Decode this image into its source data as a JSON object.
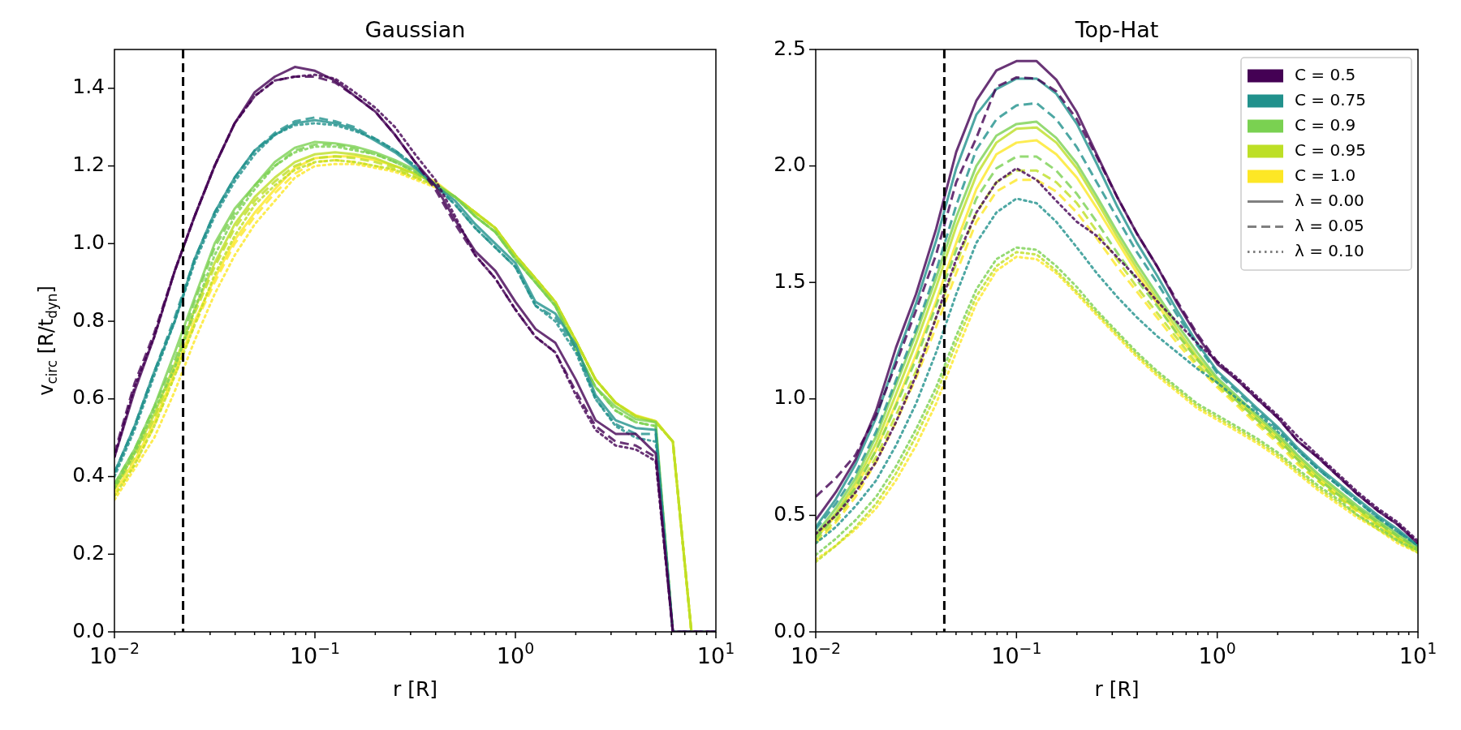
{
  "chart_data": [
    {
      "type": "line",
      "title": "Gaussian",
      "xlabel": "r [R]",
      "ylabel": "v$_{circ}$ [R/t$_{dyn}$]",
      "log": "x",
      "grid": false,
      "legend": false,
      "marker": "none",
      "xlim": [
        0.01,
        10
      ],
      "ylim": [
        0,
        1.5
      ],
      "xticks": [
        {
          "value": 0.01,
          "label": "10$^{−2}$"
        },
        {
          "value": 0.02,
          "label": null
        },
        {
          "value": 0.03,
          "label": null
        },
        {
          "value": 0.04,
          "label": null
        },
        {
          "value": 0.05,
          "label": null
        },
        {
          "value": 0.06,
          "label": null
        },
        {
          "value": 0.07,
          "label": null
        },
        {
          "value": 0.08,
          "label": null
        },
        {
          "value": 0.09,
          "label": null
        },
        {
          "value": 0.1,
          "label": "10$^{−1}$"
        },
        {
          "value": 0.2,
          "label": null
        },
        {
          "value": 0.3,
          "label": null
        },
        {
          "value": 0.4,
          "label": null
        },
        {
          "value": 0.5,
          "label": null
        },
        {
          "value": 0.6,
          "label": null
        },
        {
          "value": 0.7,
          "label": null
        },
        {
          "value": 0.8,
          "label": null
        },
        {
          "value": 0.9,
          "label": null
        },
        {
          "value": 1,
          "label": "10$^{0}$"
        },
        {
          "value": 2,
          "label": null
        },
        {
          "value": 3,
          "label": null
        },
        {
          "value": 4,
          "label": null
        },
        {
          "value": 5,
          "label": null
        },
        {
          "value": 6,
          "label": null
        },
        {
          "value": 7,
          "label": null
        },
        {
          "value": 8,
          "label": null
        },
        {
          "value": 9,
          "label": null
        },
        {
          "value": 10,
          "label": "10$^{1}$"
        }
      ],
      "yticks": [
        {
          "value": 0,
          "label": "0.0"
        },
        {
          "value": 0.2,
          "label": "0.2"
        },
        {
          "value": 0.4,
          "label": "0.4"
        },
        {
          "value": 0.6,
          "label": "0.6"
        },
        {
          "value": 0.8,
          "label": "0.8"
        },
        {
          "value": 1,
          "label": "1.0"
        },
        {
          "value": 1.2,
          "label": "1.2"
        },
        {
          "value": 1.4,
          "label": "1.4"
        }
      ],
      "ref_lines": [
        {
          "axis": "x",
          "value": 0.022,
          "color": "#000000",
          "line_style": "dashed"
        }
      ],
      "x": [
        0.01,
        0.0126,
        0.0158,
        0.02,
        0.0251,
        0.0316,
        0.0398,
        0.0501,
        0.0631,
        0.0794,
        0.1,
        0.126,
        0.158,
        0.2,
        0.251,
        0.316,
        0.398,
        0.501,
        0.631,
        0.794,
        1,
        1.26,
        1.58,
        2,
        2.51,
        3.16,
        3.98,
        5.01,
        6.1,
        7.55,
        10
      ],
      "series": [
        {
          "color": "#440154",
          "line_style": "solid",
          "values": [
            0.45,
            0.62,
            0.76,
            0.93,
            1.07,
            1.2,
            1.31,
            1.39,
            1.43,
            1.455,
            1.445,
            1.42,
            1.38,
            1.34,
            1.28,
            1.21,
            1.15,
            1.06,
            0.98,
            0.93,
            0.85,
            0.78,
            0.745,
            0.65,
            0.545,
            0.51,
            0.51,
            0.46,
            0,
            0,
            0
          ]
        },
        {
          "color": "#440154",
          "line_style": "dashed",
          "values": [
            0.46,
            0.64,
            0.77,
            0.93,
            1.07,
            1.2,
            1.31,
            1.38,
            1.42,
            1.43,
            1.43,
            1.415,
            1.38,
            1.34,
            1.28,
            1.21,
            1.14,
            1.05,
            0.97,
            0.91,
            0.83,
            0.76,
            0.72,
            0.62,
            0.53,
            0.49,
            0.48,
            0.45,
            0,
            0,
            0
          ]
        },
        {
          "color": "#440154",
          "line_style": "dotted",
          "values": [
            0.45,
            0.63,
            0.76,
            0.93,
            1.07,
            1.2,
            1.31,
            1.38,
            1.42,
            1.43,
            1.435,
            1.425,
            1.39,
            1.35,
            1.3,
            1.23,
            1.165,
            1.07,
            0.97,
            0.91,
            0.83,
            0.76,
            0.72,
            0.61,
            0.52,
            0.48,
            0.47,
            0.44,
            0,
            0,
            0
          ]
        },
        {
          "color": "#21918c",
          "line_style": "solid",
          "values": [
            0.41,
            0.53,
            0.67,
            0.8,
            0.96,
            1.08,
            1.17,
            1.24,
            1.28,
            1.31,
            1.318,
            1.31,
            1.295,
            1.265,
            1.235,
            1.195,
            1.15,
            1.11,
            1.05,
            1.0,
            0.95,
            0.85,
            0.82,
            0.74,
            0.61,
            0.545,
            0.525,
            0.52,
            0,
            0,
            0
          ]
        },
        {
          "color": "#21918c",
          "line_style": "dashed",
          "values": [
            0.41,
            0.53,
            0.67,
            0.81,
            0.96,
            1.08,
            1.17,
            1.24,
            1.285,
            1.315,
            1.325,
            1.315,
            1.3,
            1.27,
            1.24,
            1.2,
            1.15,
            1.1,
            1.04,
            0.99,
            0.94,
            0.84,
            0.81,
            0.73,
            0.6,
            0.535,
            0.51,
            0.51,
            0,
            0,
            0
          ]
        },
        {
          "color": "#21918c",
          "line_style": "dotted",
          "values": [
            0.4,
            0.52,
            0.66,
            0.8,
            0.95,
            1.07,
            1.16,
            1.23,
            1.28,
            1.305,
            1.31,
            1.305,
            1.29,
            1.27,
            1.24,
            1.2,
            1.15,
            1.1,
            1.04,
            0.99,
            0.94,
            0.84,
            0.8,
            0.72,
            0.6,
            0.53,
            0.5,
            0.49,
            0,
            0,
            0
          ]
        },
        {
          "color": "#7ad151",
          "line_style": "solid",
          "values": [
            0.38,
            0.47,
            0.58,
            0.72,
            0.86,
            1.0,
            1.09,
            1.15,
            1.21,
            1.247,
            1.262,
            1.258,
            1.25,
            1.235,
            1.215,
            1.19,
            1.155,
            1.12,
            1.07,
            1.03,
            0.96,
            0.9,
            0.84,
            0.73,
            0.63,
            0.58,
            0.548,
            0.54,
            0,
            0,
            0
          ]
        },
        {
          "color": "#7ad151",
          "line_style": "dashed",
          "values": [
            0.38,
            0.47,
            0.58,
            0.7,
            0.85,
            0.99,
            1.08,
            1.15,
            1.2,
            1.24,
            1.255,
            1.255,
            1.245,
            1.23,
            1.21,
            1.185,
            1.15,
            1.12,
            1.07,
            1.03,
            0.96,
            0.9,
            0.84,
            0.73,
            0.63,
            0.57,
            0.54,
            0.53,
            0,
            0,
            0
          ]
        },
        {
          "color": "#7ad151",
          "line_style": "dotted",
          "values": [
            0.37,
            0.46,
            0.57,
            0.68,
            0.83,
            0.97,
            1.07,
            1.14,
            1.2,
            1.235,
            1.25,
            1.25,
            1.24,
            1.23,
            1.21,
            1.185,
            1.15,
            1.12,
            1.07,
            1.03,
            0.96,
            0.9,
            0.84,
            0.73,
            0.63,
            0.57,
            0.54,
            0.53,
            0,
            0,
            0
          ]
        },
        {
          "color": "#bddf26",
          "line_style": "solid",
          "values": [
            0.37,
            0.46,
            0.56,
            0.69,
            0.83,
            0.95,
            1.05,
            1.12,
            1.17,
            1.21,
            1.23,
            1.235,
            1.23,
            1.22,
            1.2,
            1.18,
            1.155,
            1.12,
            1.08,
            1.04,
            0.97,
            0.91,
            0.85,
            0.75,
            0.65,
            0.59,
            0.556,
            0.542,
            0.49,
            0,
            0
          ]
        },
        {
          "color": "#bddf26",
          "line_style": "dashed",
          "values": [
            0.37,
            0.45,
            0.55,
            0.68,
            0.82,
            0.94,
            1.04,
            1.11,
            1.16,
            1.2,
            1.22,
            1.225,
            1.22,
            1.21,
            1.195,
            1.175,
            1.15,
            1.12,
            1.08,
            1.04,
            0.97,
            0.91,
            0.85,
            0.75,
            0.65,
            0.59,
            0.555,
            0.54,
            0.49,
            0,
            0
          ]
        },
        {
          "color": "#bddf26",
          "line_style": "dotted",
          "values": [
            0.35,
            0.43,
            0.53,
            0.66,
            0.79,
            0.92,
            1.02,
            1.1,
            1.15,
            1.19,
            1.21,
            1.215,
            1.21,
            1.2,
            1.19,
            1.17,
            1.15,
            1.12,
            1.08,
            1.04,
            0.97,
            0.91,
            0.85,
            0.75,
            0.65,
            0.59,
            0.555,
            0.54,
            0.49,
            0,
            0
          ]
        },
        {
          "color": "#fde725",
          "line_style": "solid",
          "values": [
            0.36,
            0.44,
            0.54,
            0.67,
            0.8,
            0.91,
            1.01,
            1.08,
            1.14,
            1.195,
            1.22,
            1.225,
            1.225,
            1.215,
            1.2,
            1.18,
            1.16,
            1.12,
            1.08,
            1.04,
            0.97,
            0.91,
            0.85,
            0.75,
            0.65,
            0.59,
            0.558,
            0.543,
            0.49,
            0,
            0
          ]
        },
        {
          "color": "#fde725",
          "line_style": "dashed",
          "values": [
            0.35,
            0.43,
            0.53,
            0.66,
            0.79,
            0.9,
            1.0,
            1.07,
            1.13,
            1.18,
            1.21,
            1.215,
            1.21,
            1.2,
            1.19,
            1.17,
            1.15,
            1.12,
            1.08,
            1.04,
            0.97,
            0.91,
            0.85,
            0.75,
            0.65,
            0.59,
            0.556,
            0.542,
            0.49,
            0,
            0
          ]
        },
        {
          "color": "#fde725",
          "line_style": "dotted",
          "values": [
            0.34,
            0.42,
            0.5,
            0.62,
            0.75,
            0.87,
            0.97,
            1.05,
            1.11,
            1.17,
            1.2,
            1.205,
            1.205,
            1.195,
            1.185,
            1.165,
            1.145,
            1.12,
            1.08,
            1.04,
            0.97,
            0.91,
            0.85,
            0.75,
            0.65,
            0.59,
            0.555,
            0.54,
            0.49,
            0,
            0
          ]
        }
      ]
    },
    {
      "type": "line",
      "title": "Top-Hat",
      "xlabel": "r [R]",
      "log": "x",
      "grid": false,
      "legend": "top right",
      "marker": "none",
      "xlim": [
        0.01,
        10
      ],
      "ylim": [
        0,
        2.5
      ],
      "xticks": [
        {
          "value": 0.01,
          "label": "10$^{−2}$"
        },
        {
          "value": 0.02,
          "label": null
        },
        {
          "value": 0.03,
          "label": null
        },
        {
          "value": 0.04,
          "label": null
        },
        {
          "value": 0.05,
          "label": null
        },
        {
          "value": 0.06,
          "label": null
        },
        {
          "value": 0.07,
          "label": null
        },
        {
          "value": 0.08,
          "label": null
        },
        {
          "value": 0.09,
          "label": null
        },
        {
          "value": 0.1,
          "label": "10$^{−1}$"
        },
        {
          "value": 0.2,
          "label": null
        },
        {
          "value": 0.3,
          "label": null
        },
        {
          "value": 0.4,
          "label": null
        },
        {
          "value": 0.5,
          "label": null
        },
        {
          "value": 0.6,
          "label": null
        },
        {
          "value": 0.7,
          "label": null
        },
        {
          "value": 0.8,
          "label": null
        },
        {
          "value": 0.9,
          "label": null
        },
        {
          "value": 1,
          "label": "10$^{0}$"
        },
        {
          "value": 2,
          "label": null
        },
        {
          "value": 3,
          "label": null
        },
        {
          "value": 4,
          "label": null
        },
        {
          "value": 5,
          "label": null
        },
        {
          "value": 6,
          "label": null
        },
        {
          "value": 7,
          "label": null
        },
        {
          "value": 8,
          "label": null
        },
        {
          "value": 9,
          "label": null
        },
        {
          "value": 10,
          "label": "10$^{1}$"
        }
      ],
      "yticks": [
        {
          "value": 0,
          "label": "0.0"
        },
        {
          "value": 0.5,
          "label": "0.5"
        },
        {
          "value": 1,
          "label": "1.0"
        },
        {
          "value": 1.5,
          "label": "1.5"
        },
        {
          "value": 2,
          "label": "2.0"
        },
        {
          "value": 2.5,
          "label": "2.5"
        }
      ],
      "ref_lines": [
        {
          "axis": "x",
          "value": 0.0437,
          "color": "#000000",
          "line_style": "dashed"
        }
      ],
      "x": [
        0.01,
        0.0126,
        0.0158,
        0.02,
        0.0251,
        0.0316,
        0.0398,
        0.0501,
        0.0631,
        0.0794,
        0.1,
        0.126,
        0.158,
        0.2,
        0.251,
        0.316,
        0.398,
        0.501,
        0.631,
        0.794,
        1,
        1.26,
        1.58,
        2,
        2.51,
        3.16,
        3.98,
        5.01,
        6.31,
        7.94,
        10
      ],
      "series": [
        {
          "name": "C = 0.5",
          "color": "#440154",
          "line_style": "solid",
          "values": [
            0.48,
            0.6,
            0.74,
            0.95,
            1.22,
            1.45,
            1.73,
            2.06,
            2.28,
            2.41,
            2.45,
            2.45,
            2.37,
            2.23,
            2.05,
            1.87,
            1.71,
            1.57,
            1.41,
            1.27,
            1.15,
            1.08,
            1.0,
            0.92,
            0.82,
            0.75,
            0.67,
            0.59,
            0.52,
            0.46,
            0.38
          ]
        },
        {
          "color": "#440154",
          "line_style": "dashed",
          "values": [
            0.58,
            0.66,
            0.76,
            0.93,
            1.15,
            1.38,
            1.62,
            1.93,
            2.12,
            2.34,
            2.38,
            2.375,
            2.32,
            2.2,
            2.04,
            1.87,
            1.71,
            1.57,
            1.42,
            1.28,
            1.16,
            1.08,
            1.0,
            0.92,
            0.82,
            0.75,
            0.67,
            0.59,
            0.52,
            0.46,
            0.38
          ]
        },
        {
          "color": "#440154",
          "line_style": "dotted",
          "values": [
            0.42,
            0.5,
            0.6,
            0.73,
            0.9,
            1.1,
            1.35,
            1.6,
            1.8,
            1.93,
            1.99,
            1.94,
            1.85,
            1.76,
            1.7,
            1.61,
            1.52,
            1.42,
            1.33,
            1.24,
            1.16,
            1.09,
            1.01,
            0.93,
            0.84,
            0.76,
            0.68,
            0.6,
            0.53,
            0.47,
            0.39
          ]
        },
        {
          "name": "C = 0.75",
          "color": "#21918c",
          "line_style": "solid",
          "values": [
            0.45,
            0.57,
            0.72,
            0.92,
            1.17,
            1.41,
            1.68,
            1.99,
            2.22,
            2.33,
            2.375,
            2.375,
            2.31,
            2.18,
            2.01,
            1.83,
            1.67,
            1.53,
            1.38,
            1.24,
            1.12,
            1.04,
            0.96,
            0.88,
            0.79,
            0.71,
            0.64,
            0.57,
            0.5,
            0.44,
            0.37
          ]
        },
        {
          "color": "#21918c",
          "line_style": "dashed",
          "values": [
            0.44,
            0.55,
            0.68,
            0.86,
            1.08,
            1.3,
            1.55,
            1.83,
            2.07,
            2.2,
            2.26,
            2.27,
            2.2,
            2.08,
            1.93,
            1.78,
            1.63,
            1.5,
            1.36,
            1.23,
            1.11,
            1.03,
            0.95,
            0.87,
            0.78,
            0.7,
            0.63,
            0.56,
            0.49,
            0.43,
            0.37
          ]
        },
        {
          "color": "#21918c",
          "line_style": "dotted",
          "values": [
            0.38,
            0.45,
            0.54,
            0.65,
            0.8,
            0.98,
            1.2,
            1.45,
            1.67,
            1.8,
            1.86,
            1.84,
            1.76,
            1.65,
            1.54,
            1.44,
            1.35,
            1.27,
            1.2,
            1.13,
            1.07,
            1.0,
            0.94,
            0.86,
            0.78,
            0.7,
            0.63,
            0.56,
            0.49,
            0.43,
            0.37
          ]
        },
        {
          "name": "C = 0.9",
          "color": "#7ad151",
          "line_style": "solid",
          "values": [
            0.42,
            0.53,
            0.66,
            0.84,
            1.06,
            1.28,
            1.52,
            1.78,
            2.0,
            2.13,
            2.18,
            2.19,
            2.12,
            2.01,
            1.87,
            1.72,
            1.58,
            1.45,
            1.32,
            1.2,
            1.09,
            1.01,
            0.93,
            0.85,
            0.76,
            0.68,
            0.61,
            0.54,
            0.48,
            0.42,
            0.36
          ]
        },
        {
          "color": "#7ad151",
          "line_style": "dashed",
          "values": [
            0.4,
            0.5,
            0.62,
            0.78,
            0.97,
            1.17,
            1.4,
            1.64,
            1.86,
            1.99,
            2.04,
            2.04,
            1.98,
            1.88,
            1.76,
            1.63,
            1.51,
            1.4,
            1.28,
            1.17,
            1.07,
            0.99,
            0.91,
            0.83,
            0.74,
            0.66,
            0.59,
            0.53,
            0.47,
            0.41,
            0.36
          ]
        },
        {
          "color": "#7ad151",
          "line_style": "dotted",
          "values": [
            0.33,
            0.4,
            0.48,
            0.58,
            0.71,
            0.87,
            1.05,
            1.27,
            1.47,
            1.6,
            1.65,
            1.64,
            1.57,
            1.48,
            1.38,
            1.29,
            1.2,
            1.12,
            1.05,
            0.98,
            0.93,
            0.88,
            0.83,
            0.77,
            0.7,
            0.63,
            0.57,
            0.5,
            0.45,
            0.39,
            0.35
          ]
        },
        {
          "name": "C = 0.95",
          "color": "#bddf26",
          "line_style": "solid",
          "values": [
            0.41,
            0.51,
            0.64,
            0.81,
            1.02,
            1.24,
            1.48,
            1.74,
            1.96,
            2.1,
            2.16,
            2.165,
            2.1,
            1.99,
            1.85,
            1.7,
            1.56,
            1.43,
            1.3,
            1.18,
            1.08,
            1.0,
            0.92,
            0.84,
            0.75,
            0.67,
            0.6,
            0.53,
            0.47,
            0.41,
            0.35
          ]
        },
        {
          "color": "#bddf26",
          "line_style": "dashed",
          "values": [
            0.39,
            0.48,
            0.6,
            0.75,
            0.93,
            1.12,
            1.35,
            1.58,
            1.8,
            1.93,
            1.98,
            1.98,
            1.93,
            1.84,
            1.72,
            1.6,
            1.48,
            1.37,
            1.26,
            1.15,
            1.06,
            0.98,
            0.9,
            0.82,
            0.73,
            0.65,
            0.58,
            0.52,
            0.46,
            0.4,
            0.35
          ]
        },
        {
          "color": "#bddf26",
          "line_style": "dotted",
          "values": [
            0.3,
            0.37,
            0.45,
            0.55,
            0.68,
            0.84,
            1.02,
            1.24,
            1.44,
            1.57,
            1.63,
            1.62,
            1.55,
            1.46,
            1.37,
            1.28,
            1.19,
            1.11,
            1.04,
            0.97,
            0.92,
            0.87,
            0.82,
            0.76,
            0.69,
            0.62,
            0.56,
            0.5,
            0.44,
            0.39,
            0.34
          ]
        },
        {
          "name": "C = 1.0",
          "color": "#fde725",
          "line_style": "solid",
          "values": [
            0.4,
            0.5,
            0.62,
            0.78,
            0.98,
            1.19,
            1.42,
            1.67,
            1.9,
            2.05,
            2.1,
            2.11,
            2.05,
            1.95,
            1.82,
            1.68,
            1.54,
            1.41,
            1.28,
            1.17,
            1.07,
            0.99,
            0.91,
            0.83,
            0.74,
            0.66,
            0.59,
            0.52,
            0.46,
            0.4,
            0.35
          ]
        },
        {
          "color": "#fde725",
          "line_style": "dashed",
          "values": [
            0.38,
            0.47,
            0.58,
            0.73,
            0.9,
            1.09,
            1.31,
            1.54,
            1.76,
            1.89,
            1.94,
            1.94,
            1.89,
            1.8,
            1.69,
            1.57,
            1.46,
            1.35,
            1.24,
            1.14,
            1.05,
            0.97,
            0.89,
            0.81,
            0.72,
            0.65,
            0.58,
            0.51,
            0.45,
            0.4,
            0.34
          ]
        },
        {
          "color": "#fde725",
          "line_style": "dotted",
          "values": [
            0.31,
            0.37,
            0.44,
            0.53,
            0.65,
            0.8,
            0.98,
            1.2,
            1.41,
            1.55,
            1.61,
            1.6,
            1.54,
            1.45,
            1.36,
            1.27,
            1.18,
            1.1,
            1.03,
            0.96,
            0.91,
            0.86,
            0.81,
            0.75,
            0.68,
            0.61,
            0.55,
            0.49,
            0.44,
            0.38,
            0.34
          ]
        },
        {
          "name": "λ = 0.00",
          "color": "#808080",
          "line_style": "solid",
          "values": [
            null,
            null,
            null,
            null,
            null,
            null,
            null,
            null,
            null,
            null,
            null,
            null,
            null,
            null,
            null,
            null,
            null,
            null,
            null,
            null,
            null,
            null,
            null,
            null,
            null,
            null,
            null,
            null,
            null,
            null,
            null
          ]
        },
        {
          "name": "λ = 0.05",
          "color": "#808080",
          "line_style": "dashed",
          "values": [
            null,
            null,
            null,
            null,
            null,
            null,
            null,
            null,
            null,
            null,
            null,
            null,
            null,
            null,
            null,
            null,
            null,
            null,
            null,
            null,
            null,
            null,
            null,
            null,
            null,
            null,
            null,
            null,
            null,
            null,
            null
          ]
        },
        {
          "name": "λ = 0.10",
          "color": "#808080",
          "line_style": "dotted",
          "values": [
            null,
            null,
            null,
            null,
            null,
            null,
            null,
            null,
            null,
            null,
            null,
            null,
            null,
            null,
            null,
            null,
            null,
            null,
            null,
            null,
            null,
            null,
            null,
            null,
            null,
            null,
            null,
            null,
            null,
            null,
            null
          ]
        }
      ]
    }
  ]
}
